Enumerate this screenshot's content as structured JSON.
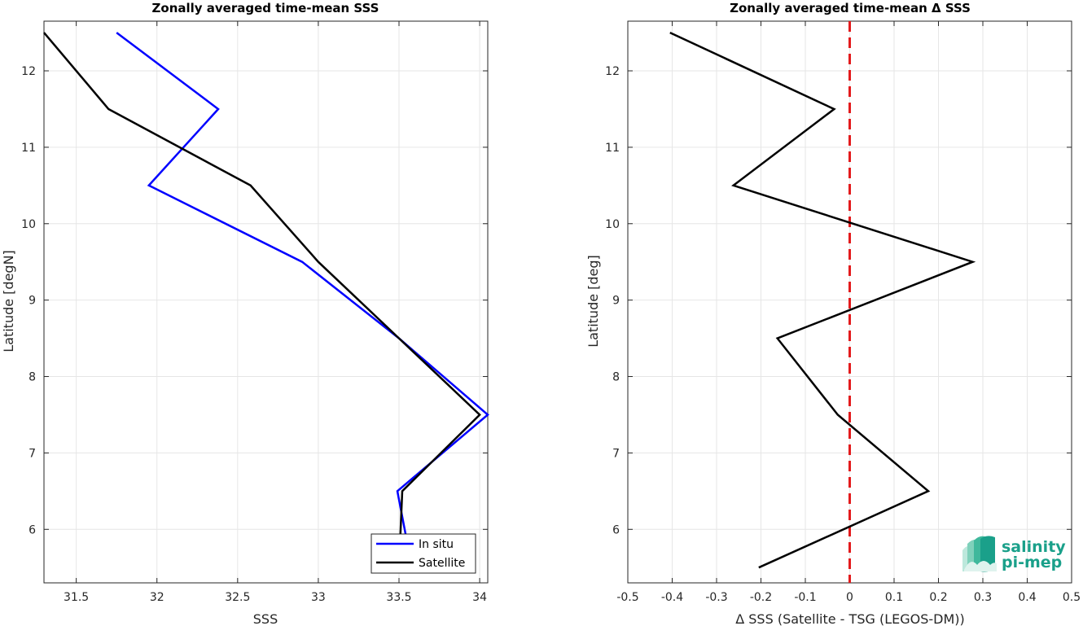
{
  "chart_data": [
    {
      "type": "line",
      "title": "Zonally averaged time-mean SSS",
      "xlabel": "SSS",
      "ylabel": "Latitude [degN]",
      "xlim": [
        31.3,
        34.05
      ],
      "ylim": [
        5.3,
        12.65
      ],
      "xticks": [
        31.5,
        32,
        32.5,
        33,
        33.5,
        34
      ],
      "xtick_labels": [
        "31.5",
        "32",
        "32.5",
        "33",
        "33.5",
        "34"
      ],
      "yticks": [
        6,
        7,
        8,
        9,
        10,
        11,
        12
      ],
      "ytick_labels": [
        "6",
        "7",
        "8",
        "9",
        "10",
        "11",
        "12"
      ],
      "grid": true,
      "legend_position": "bottom-right",
      "series": [
        {
          "name": "In situ",
          "color": "#0000ff",
          "x": [
            31.75,
            32.38,
            31.95,
            32.9,
            33.5,
            34.05,
            33.49,
            33.58
          ],
          "y": [
            12.5,
            11.5,
            10.5,
            9.5,
            8.5,
            7.5,
            6.5,
            5.5
          ]
        },
        {
          "name": "Satellite",
          "color": "#000000",
          "x": [
            31.3,
            31.7,
            32.58,
            33.0,
            33.5,
            34.0,
            33.52,
            33.5
          ],
          "y": [
            12.5,
            11.5,
            10.5,
            9.5,
            8.5,
            7.5,
            6.5,
            5.5
          ]
        }
      ]
    },
    {
      "type": "line",
      "title": "Zonally averaged time-mean Δ SSS",
      "xlabel": "Δ SSS (Satellite - TSG (LEGOS-DM))",
      "ylabel": "Latitude [deg]",
      "xlim": [
        -0.5,
        0.5
      ],
      "ylim": [
        5.3,
        12.65
      ],
      "xticks": [
        -0.5,
        -0.4,
        -0.3,
        -0.2,
        -0.1,
        0,
        0.1,
        0.2,
        0.3,
        0.4,
        0.5
      ],
      "xtick_labels": [
        "-0.5",
        "-0.4",
        "-0.3",
        "-0.2",
        "-0.1",
        "0",
        "0.1",
        "0.2",
        "0.3",
        "0.4",
        "0.5"
      ],
      "yticks": [
        6,
        7,
        8,
        9,
        10,
        11,
        12
      ],
      "ytick_labels": [
        "6",
        "7",
        "8",
        "9",
        "10",
        "11",
        "12"
      ],
      "grid": true,
      "reference_line": {
        "x": 0,
        "color": "#e31a1c",
        "style": "dashed"
      },
      "series": [
        {
          "color": "#000000",
          "x": [
            -0.405,
            -0.035,
            -0.262,
            0.277,
            -0.163,
            -0.027,
            0.177,
            -0.205
          ],
          "y": [
            12.5,
            11.5,
            10.5,
            9.5,
            8.5,
            7.5,
            6.5,
            5.5
          ]
        }
      ]
    }
  ],
  "logo": {
    "line1": "salinity",
    "line2": "pi-mep",
    "color": "#1aa08a"
  }
}
